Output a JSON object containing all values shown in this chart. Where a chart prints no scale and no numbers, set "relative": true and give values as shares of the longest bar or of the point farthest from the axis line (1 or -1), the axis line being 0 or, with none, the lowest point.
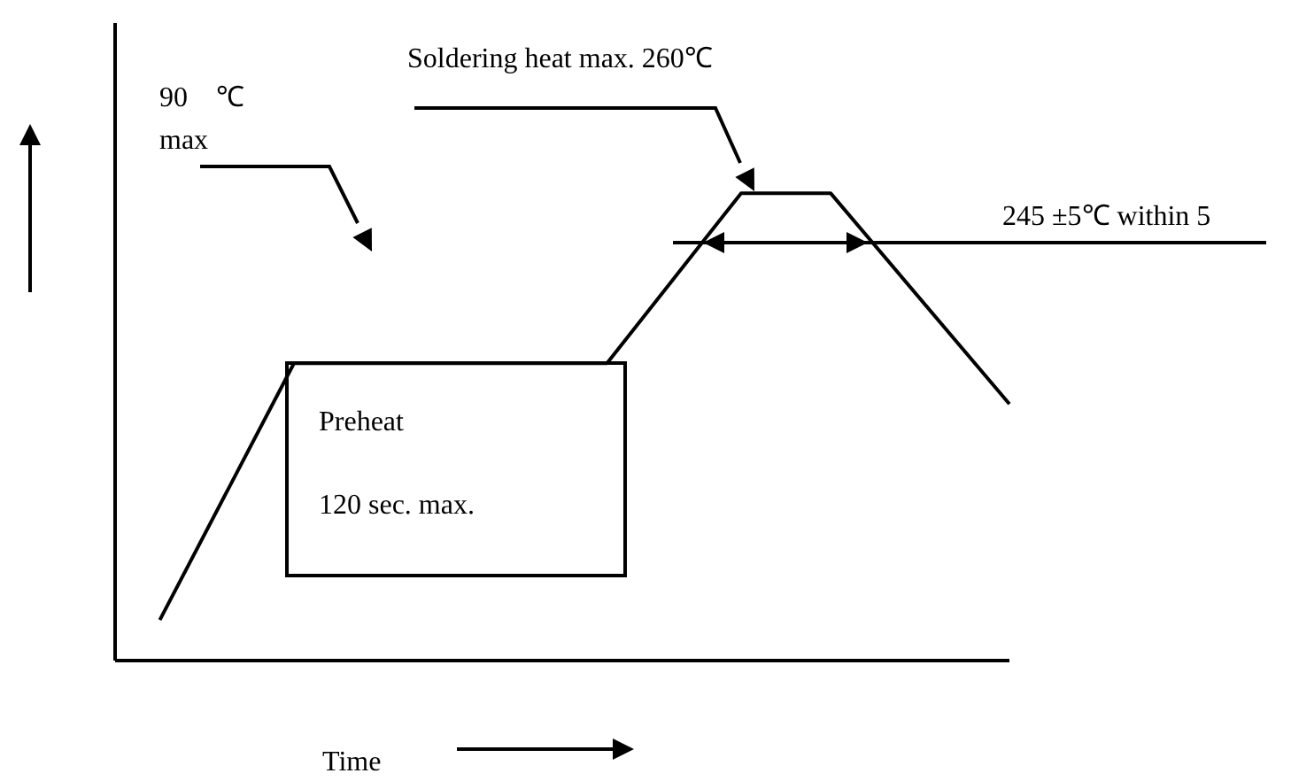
{
  "chart_data": {
    "type": "line",
    "relative": true,
    "xlabel": "Time",
    "marker": "none",
    "line_style": "solid",
    "categories": [
      null,
      null,
      null,
      null,
      null,
      null,
      null,
      null,
      null,
      null,
      null,
      null,
      null,
      null,
      null,
      null,
      null,
      null,
      null,
      null,
      null
    ],
    "series": [
      {
        "color": "#000000",
        "values": [
          null,
          0.087,
          null,
          null,
          0.636,
          null,
          null,
          null,
          null,
          null,
          null,
          0.636,
          null,
          null,
          1,
          null,
          1,
          null,
          null,
          null,
          0.549
        ]
      }
    ],
    "ref_lines": [
      {
        "axis": "y",
        "value": 0.894,
        "label": "245 ±5℃ within 5",
        "color": "#000000"
      }
    ],
    "annotations": [
      "90 ℃ max",
      "Soldering heat max. 260℃",
      "Preheat",
      "120 sec. max."
    ]
  }
}
